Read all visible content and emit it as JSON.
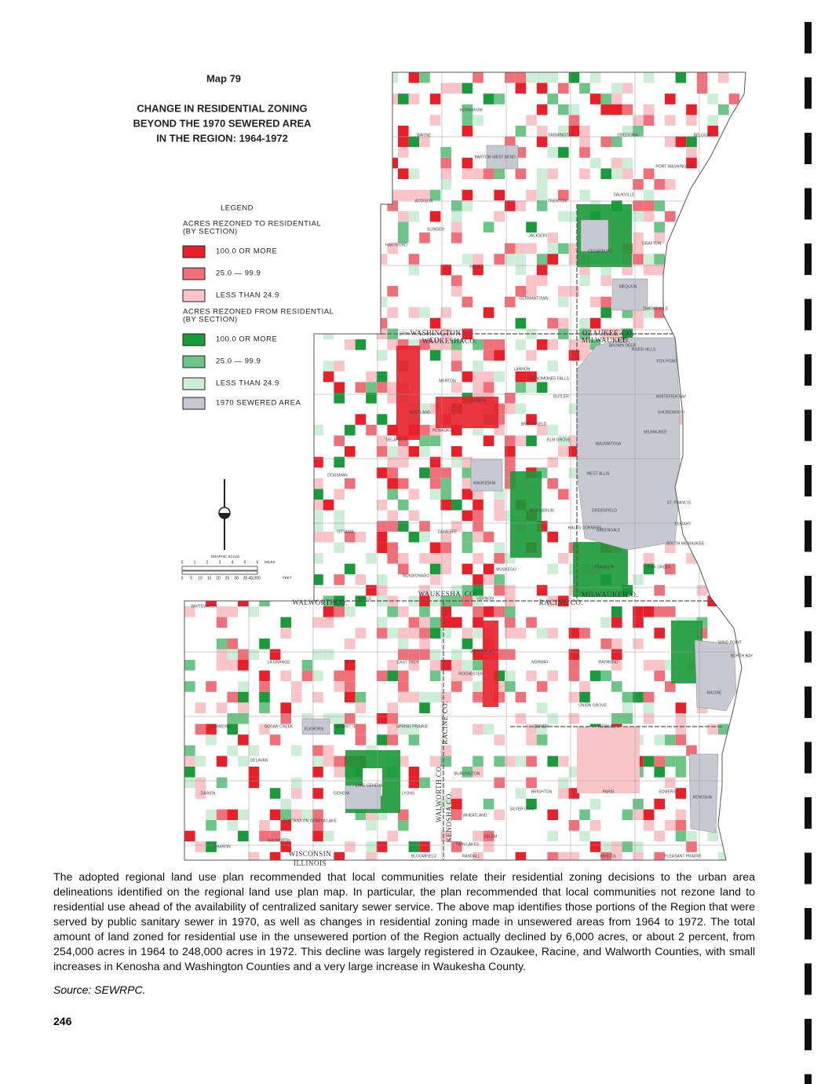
{
  "map": {
    "number": "Map 79",
    "title_lines": [
      "CHANGE IN RESIDENTIAL ZONING",
      "BEYOND THE 1970 SEWERED AREA",
      "IN THE REGION: 1964-1972"
    ]
  },
  "legend": {
    "title": "LEGEND",
    "groups": [
      {
        "heading": [
          "ACRES REZONED TO RESIDENTIAL",
          "(BY SECTION)"
        ],
        "items": [
          "100.0 OR MORE",
          "25.0 — 99.9",
          "LESS THAN 24.9"
        ]
      },
      {
        "heading": [
          "ACRES REZONED FROM RESIDENTIAL",
          "(BY SECTION)"
        ],
        "items": [
          "100.0 OR MORE",
          "25.0 — 99.9",
          "LESS THAN 24.9"
        ]
      }
    ],
    "sewered": "1970 SEWERED AREA"
  },
  "scale": {
    "title": "GRAPHIC SCALE",
    "miles_ticks": [
      "0",
      "1",
      "2",
      "3",
      "4",
      "5",
      "6"
    ],
    "miles_label": "MILES",
    "feet_ticks": [
      "0",
      "5",
      "10",
      "15",
      "20",
      "25",
      "30",
      "35",
      "40,000"
    ],
    "feet_label": "FEET"
  },
  "counties": [
    "WASHINGTON",
    "CO.",
    "WAUKESHA",
    "CO.",
    "OZAUKEE",
    "CO.",
    "MILWAUKEE",
    "CO.",
    "WALWORTH",
    "CO.",
    "WAUKESHA",
    "CO.",
    "RACINE",
    "CO.",
    "MILWAUKEE",
    "CO.",
    "KENOSHA CO.",
    "RACINE CO.",
    "WALWORTH CO.",
    "WISCONSIN",
    "ILLINOIS"
  ],
  "places": [
    "KEWASKUM",
    "WAYNE",
    "FARMINGTON",
    "FREDONIA",
    "BELGIUM",
    "BARTON",
    "WEST BEND",
    "PORT WASHINGTON",
    "SAUKVILLE",
    "ADDISON",
    "TRENTON",
    "GRAFTON",
    "SLINGER",
    "JACKSON",
    "HARTFORD",
    "CEDARBURG",
    "POLK",
    "GERMANTOWN",
    "MEQUON",
    "THIENSVILLE",
    "ERIN",
    "LANNON",
    "MENOMONEE FALLS",
    "BROWN DEER",
    "RIVER HILLS",
    "FOX POINT",
    "WHITEFISH BAY",
    "SHOREWOOD",
    "MERTON",
    "LISBON",
    "BUTLER",
    "HARTLAND",
    "PEWAUKEE",
    "BROOKFIELD",
    "DELAFIELD",
    "ELM GROVE",
    "WAUWATOSA",
    "MILWAUKEE",
    "DOUSMAN",
    "WAUKESHA",
    "WEST ALLIS",
    "NEW BERLIN",
    "ST. FRANCIS",
    "GREENFIELD",
    "CUDAHY",
    "OTTAWA",
    "GENESEE",
    "HALES CORNERS",
    "GREENDALE",
    "SOUTH MILWAUKEE",
    "FRANKLIN",
    "OAK CREEK",
    "MUKWONAGO",
    "MUSKEGO",
    "EAGLE",
    "VERNON",
    "WHITEWATER",
    "NORWAY",
    "RAYMOND",
    "WIND POINT",
    "NORTH BAY",
    "WATERFORD",
    "LA GRANGE",
    "TROY",
    "EAST TROY",
    "ROCHESTER",
    "RACINE",
    "UNION GROVE",
    "DOVER",
    "YORKVILLE",
    "RICHMOND",
    "SUGAR CREEK",
    "LAFAYETTE",
    "SPRING PRAIRIE",
    "ELKHORN",
    "DELAVAN",
    "BURLINGTON",
    "DARIEN",
    "GENEVA",
    "LAKE GENEVA",
    "LYONS",
    "BRIGHTON",
    "PARIS",
    "SOMERS",
    "KENOSHA",
    "WALWORTH",
    "SILVER LAKE",
    "WHEATLAND",
    "SALEM",
    "TWIN LAKES",
    "SHARON",
    "BLOOMFIELD",
    "RANDALL",
    "BRISTOL",
    "PLEASANT PRAIRIE",
    "FONTANA ON GENEVA LAKE"
  ],
  "body": {
    "paragraph": "The adopted regional land use plan recommended that local communities relate their residential zoning decisions to the urban area delineations identified on the regional land use plan map. In particular, the plan recommended that local communities not rezone land to residential use ahead of the availability of centralized sanitary sewer service. The above map identifies those portions of the Region that were served by public sanitary sewer in 1970, as well as changes in residential zoning made in unsewered areas from 1964 to 1972. The total amount of land zoned for residential use in the unsewered portion of the Region actually declined by 6,000 acres, or about 2 percent, from 254,000 acres in 1964 to 248,000 acres in 1972. This decline was largely registered in Ozaukee, Racine, and Walworth Counties, with small increases in Kenosha and Washington Counties and a very large increase in Waukesha County.",
    "source": "Source: SEWRPC.",
    "page_number": "246"
  }
}
